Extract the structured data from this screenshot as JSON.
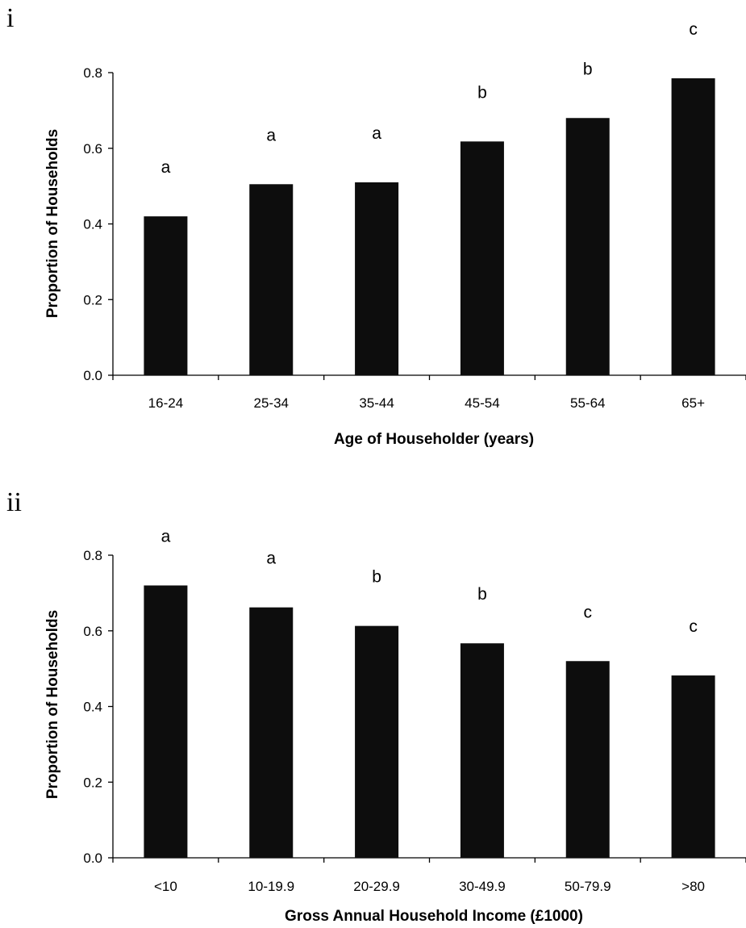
{
  "chart_data": [
    {
      "panel": "i",
      "type": "bar",
      "categories": [
        "16-24",
        "25-34",
        "35-44",
        "45-54",
        "55-64",
        "65+"
      ],
      "values": [
        0.42,
        0.505,
        0.51,
        0.618,
        0.68,
        0.785
      ],
      "annotations": [
        "a",
        "a",
        "a",
        "b",
        "b",
        "c"
      ],
      "xlabel": "Age of Householder (years)",
      "ylabel": "Proportion of Households",
      "ylim": [
        0,
        0.8
      ],
      "yticks": [
        "0.0",
        "0.2",
        "0.4",
        "0.6",
        "0.8"
      ],
      "grid": false,
      "bar_color": "#0d0d0d"
    },
    {
      "panel": "ii",
      "type": "bar",
      "categories": [
        "<10",
        "10-19.9",
        "20-29.9",
        "30-49.9",
        "50-79.9",
        ">80"
      ],
      "values": [
        0.72,
        0.662,
        0.613,
        0.567,
        0.52,
        0.482
      ],
      "annotations": [
        "a",
        "a",
        "b",
        "b",
        "c",
        "c"
      ],
      "xlabel": "Gross Annual Household Income (£1000)",
      "ylabel": "Proportion of Households",
      "ylim": [
        0,
        0.8
      ],
      "yticks": [
        "0.0",
        "0.2",
        "0.4",
        "0.6",
        "0.8"
      ],
      "grid": false,
      "bar_color": "#0d0d0d"
    }
  ]
}
